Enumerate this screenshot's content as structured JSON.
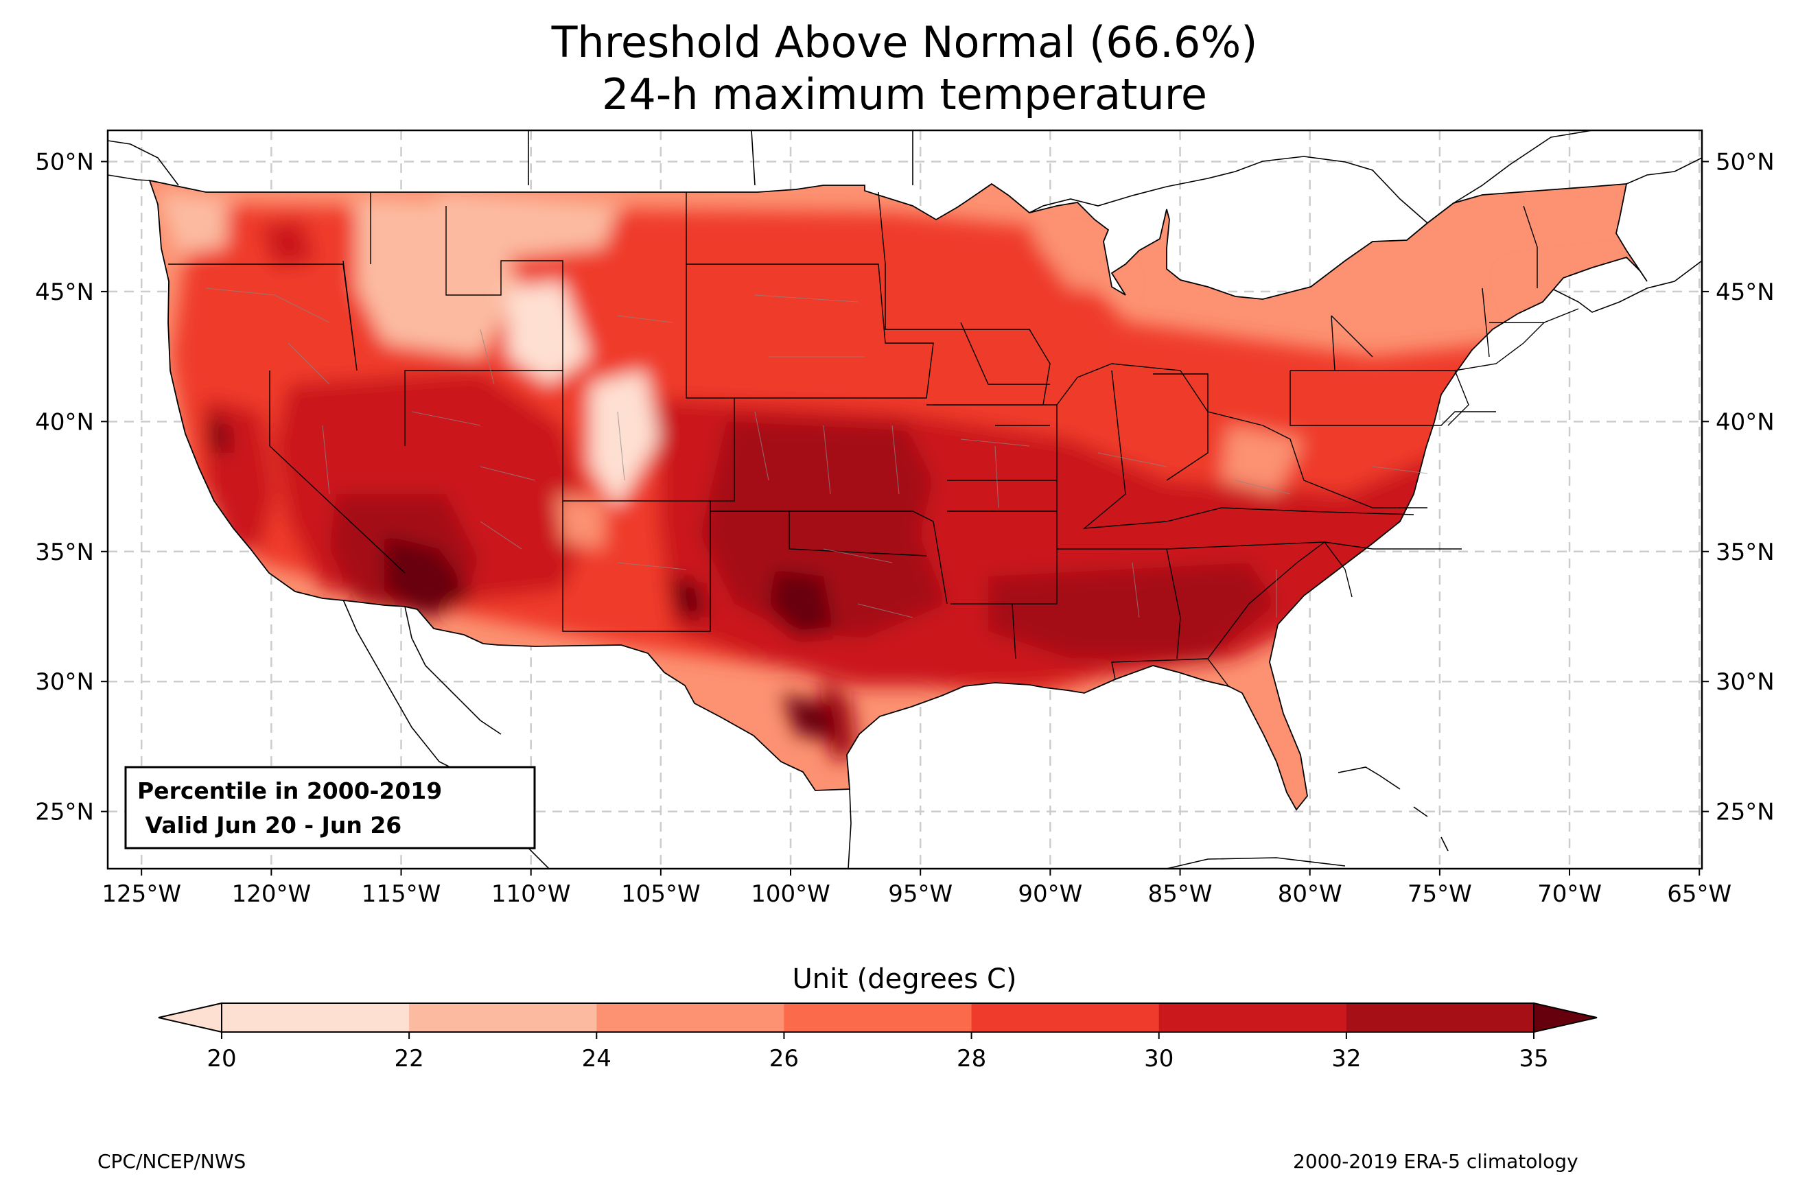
{
  "title": {
    "line1": "Threshold Above Normal (66.6%)",
    "line2": "24-h maximum temperature"
  },
  "info_box": {
    "line1": "Percentile in 2000-2019",
    "line2": " Valid Jun 20 - Jun 26"
  },
  "map": {
    "region": "CONUS",
    "lon_range": [
      -126.3,
      -64.9
    ],
    "lat_range": [
      22.8,
      51.2
    ],
    "lon_ticks": [
      "125°W",
      "120°W",
      "115°W",
      "110°W",
      "105°W",
      "100°W",
      "95°W",
      "90°W",
      "85°W",
      "80°W",
      "75°W",
      "70°W",
      "65°W"
    ],
    "lat_ticks": [
      "25°N",
      "30°N",
      "35°N",
      "40°N",
      "45°N",
      "50°N"
    ],
    "gridlines": true
  },
  "colorbar": {
    "label": "Unit (degrees C)",
    "ticks": [
      "20",
      "22",
      "24",
      "26",
      "28",
      "30",
      "32",
      "35"
    ],
    "extend": "both",
    "colors": [
      "#fee0d2",
      "#fcbba1",
      "#fc9272",
      "#fb6a4a",
      "#ef3b2c",
      "#cb181d",
      "#a50f15",
      "#67000d"
    ]
  },
  "footer": {
    "left": "CPC/NCEP/NWS",
    "right": "2000-2019 ERA-5 climatology"
  }
}
